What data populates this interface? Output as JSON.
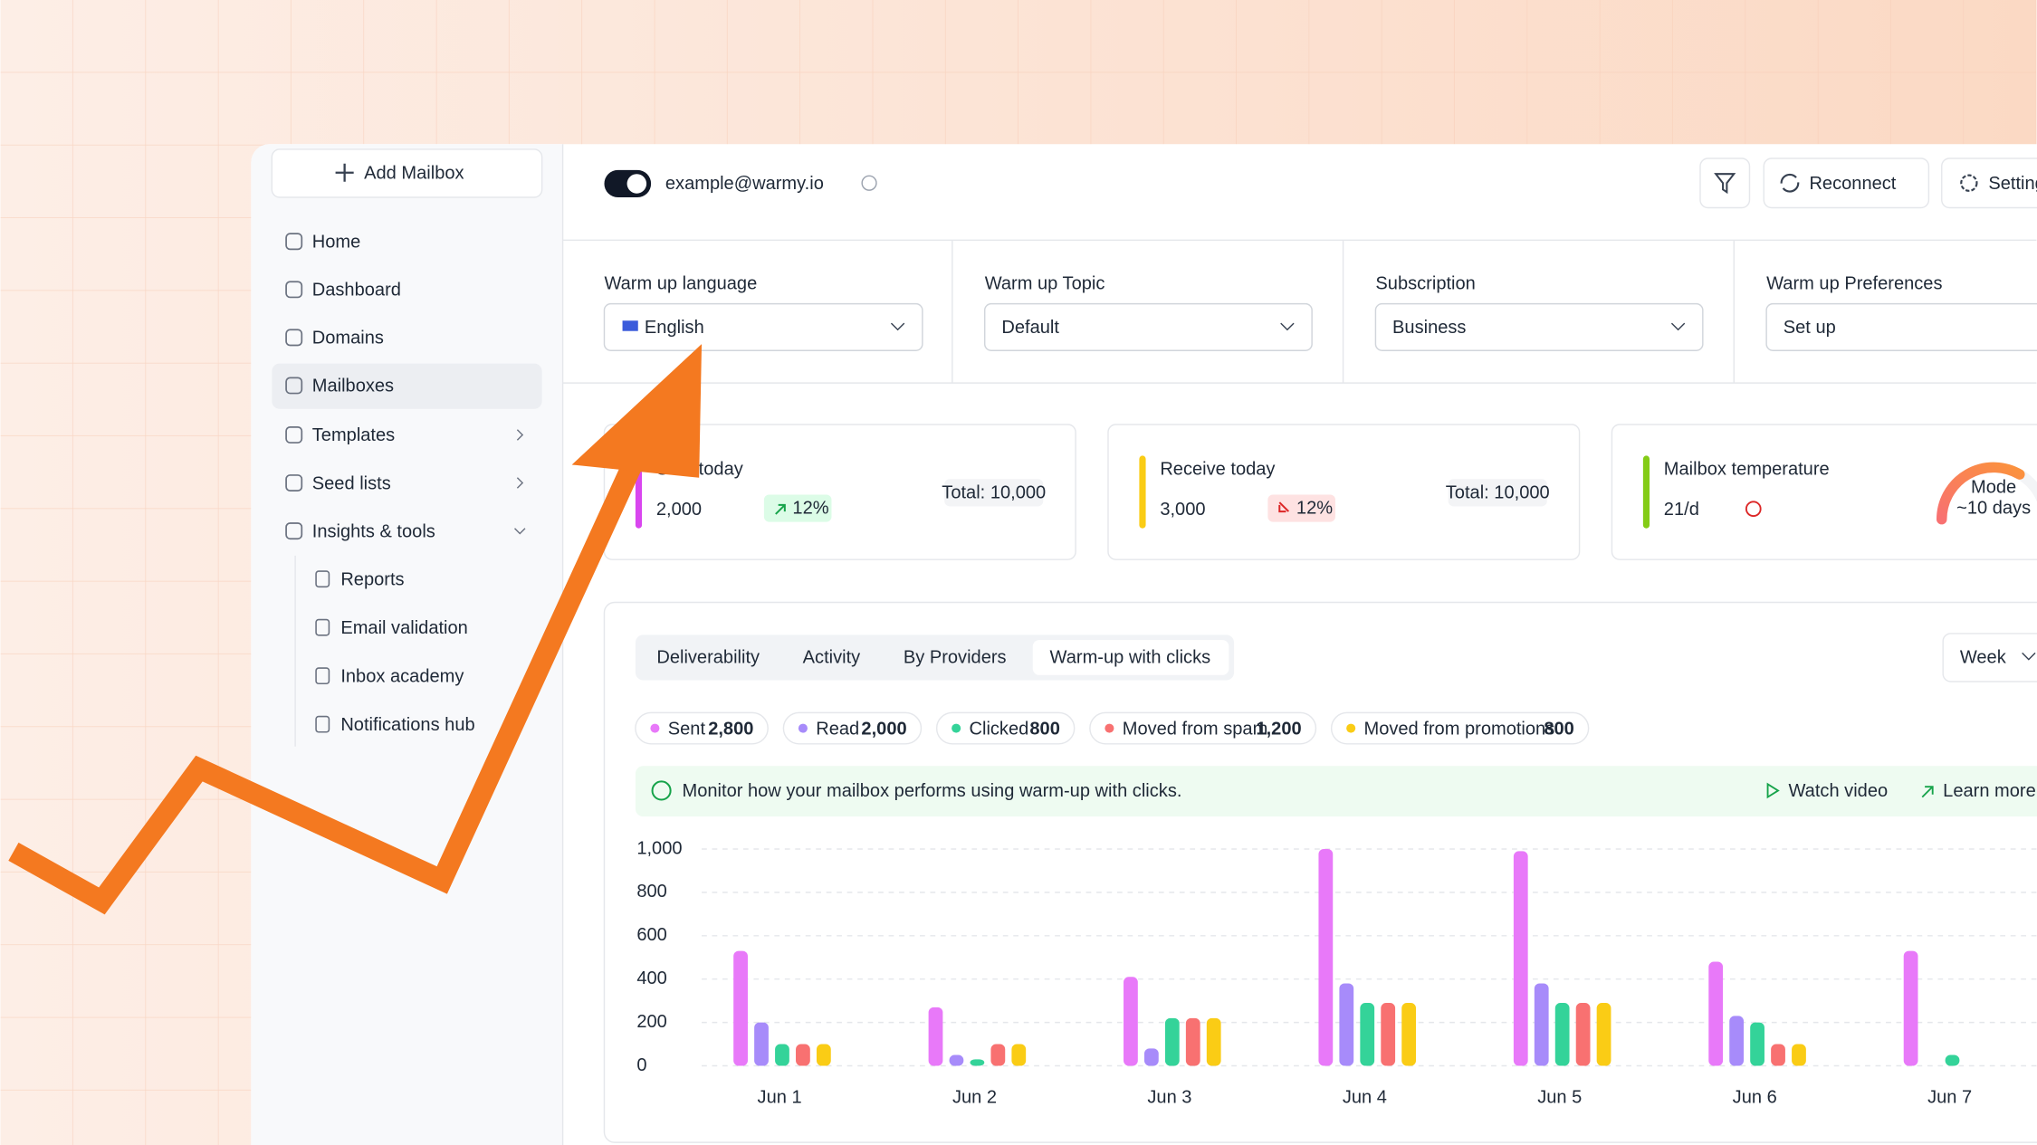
{
  "sidebar": {
    "add_button": "Add Mailbox",
    "nav": [
      "Home",
      "Dashboard",
      "Domains",
      "Mailboxes",
      "Templates",
      "Seed lists",
      "Insights & tools"
    ],
    "subnav": [
      "Reports",
      "Email validation",
      "Inbox  academy",
      "Notifications hub"
    ]
  },
  "header": {
    "email": "example@warmy.io",
    "reconnect": "Reconnect",
    "settings": "Settings"
  },
  "settings": [
    {
      "label": "Warm up language",
      "value": "English"
    },
    {
      "label": "Warm up Topic",
      "value": "Default"
    },
    {
      "label": "Subscription",
      "value": "Business"
    },
    {
      "label": "Warm up Preferences",
      "value": "Set up"
    }
  ],
  "stats": [
    {
      "label": "Sent today",
      "value": "2,000",
      "change": "12%",
      "total": "Total: 10,000"
    },
    {
      "label": "Receive today",
      "value": "3,000",
      "change": "12%",
      "total": "Total: 10,000"
    },
    {
      "label": "Mailbox temperature",
      "value": "21/d",
      "gauge_caption": "Mode",
      "gauge_value": "~10 days"
    }
  ],
  "tabs": [
    "Deliverability",
    "Activity",
    "By Providers",
    "Warm-up with clicks"
  ],
  "period": "Week",
  "legend_totals": [
    "2,800",
    "2,000",
    "800",
    "1,200",
    "800"
  ],
  "info": {
    "text": "Monitor how your mailbox performs using warm-up with clicks.",
    "watch": "Watch video",
    "learn": "Learn more"
  },
  "chart": {
    "type": "bar",
    "categories": [
      "Jun 1",
      "Jun 2",
      "Jun 3",
      "Jun 4",
      "Jun 5",
      "Jun 6",
      "Jun 7"
    ],
    "series": [
      {
        "name": "Sent",
        "color": "#e879f9",
        "values": [
          530,
          270,
          410,
          1000,
          990,
          480,
          530
        ]
      },
      {
        "name": "Read",
        "color": "#a78bfa",
        "values": [
          200,
          50,
          80,
          380,
          380,
          230,
          null
        ]
      },
      {
        "name": "Clicked",
        "color": "#34d399",
        "values": [
          100,
          30,
          220,
          290,
          290,
          200,
          50
        ]
      },
      {
        "name": "Moved from spam",
        "color": "#f87171",
        "values": [
          100,
          100,
          220,
          290,
          290,
          100,
          null
        ]
      },
      {
        "name": "Moved from promotions",
        "color": "#facc15",
        "values": [
          100,
          100,
          220,
          290,
          290,
          100,
          null
        ]
      }
    ],
    "ylim": [
      0,
      1000
    ],
    "yticks": [
      0,
      200,
      400,
      600,
      800,
      {
        "value": 1000,
        "label": "1,000"
      }
    ],
    "grid": true
  }
}
